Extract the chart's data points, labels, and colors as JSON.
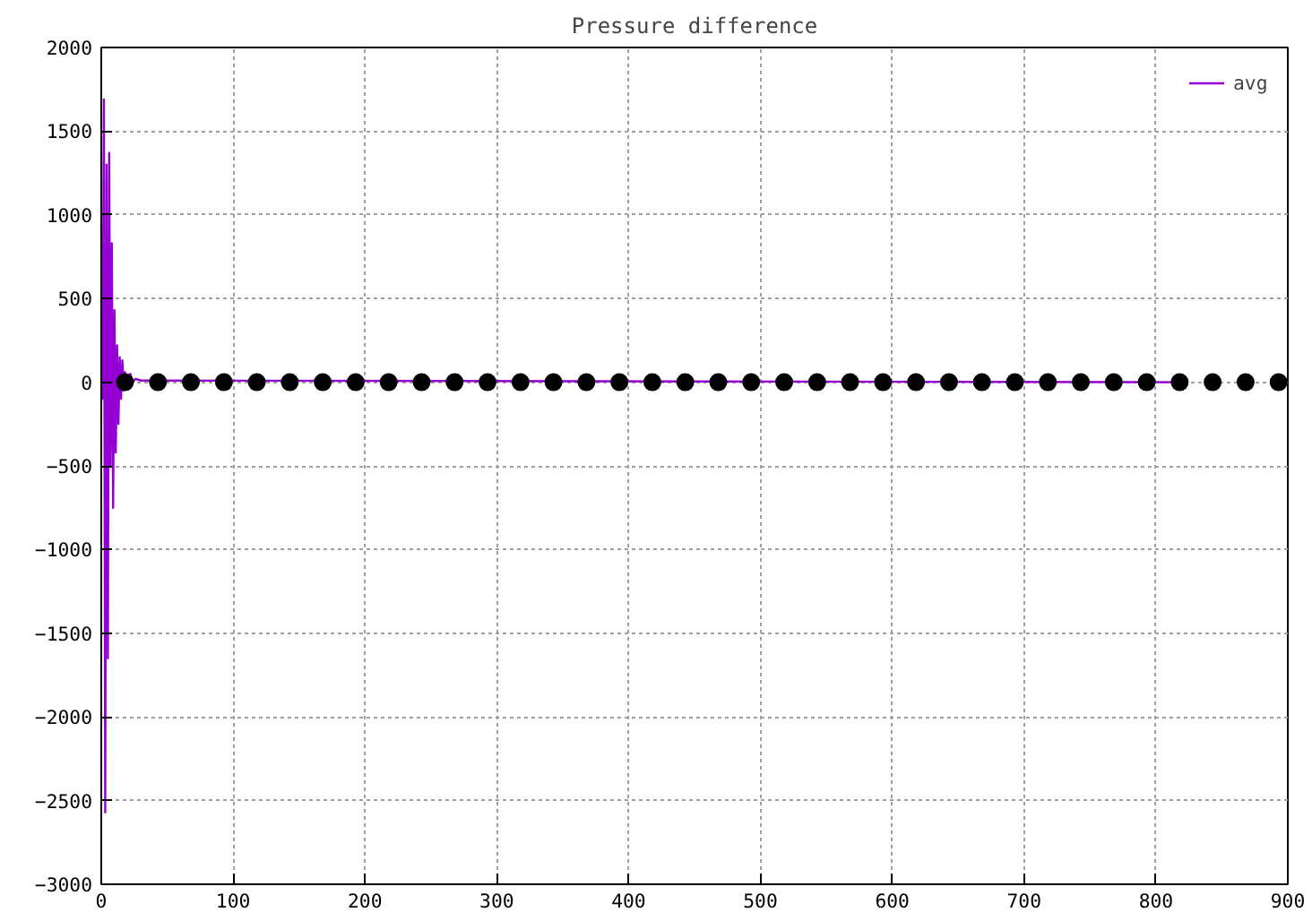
{
  "chart_data": {
    "type": "line",
    "title": "Pressure difference",
    "xlim": [
      0,
      900
    ],
    "ylim": [
      -3000,
      2000
    ],
    "xticks": [
      0,
      100,
      200,
      300,
      400,
      500,
      600,
      700,
      800,
      900
    ],
    "yticks": [
      -3000,
      -2500,
      -2000,
      -1500,
      -1000,
      -500,
      0,
      500,
      1000,
      1500,
      2000
    ],
    "grid": true,
    "legend": "top right",
    "series": [
      {
        "name": "avg",
        "color": "#9400d3",
        "marker": "none",
        "x": [
          0,
          1,
          2,
          3,
          4,
          5,
          6,
          7,
          8,
          9,
          10,
          11,
          12,
          13,
          14,
          15,
          16,
          17,
          18,
          19,
          20,
          22,
          24,
          26,
          30,
          35,
          818
        ],
        "values": [
          0,
          -100,
          1690,
          -2570,
          1300,
          -1650,
          1370,
          -500,
          830,
          -750,
          430,
          -420,
          220,
          -250,
          150,
          -100,
          130,
          -50,
          60,
          -30,
          20,
          50,
          0,
          20,
          10,
          10,
          0
        ]
      },
      {
        "color": "#000000",
        "type": "scatter",
        "marker": "circle",
        "x": [
          18,
          43,
          68,
          93,
          118,
          143,
          168,
          193,
          218,
          243,
          268,
          293,
          318,
          343,
          368,
          393,
          418,
          443,
          468,
          493,
          518,
          543,
          568,
          593,
          618,
          643,
          668,
          693,
          718,
          743,
          768,
          793,
          818,
          843,
          868,
          893
        ],
        "values": [
          0,
          0,
          0,
          0,
          0,
          0,
          0,
          0,
          0,
          0,
          0,
          0,
          0,
          0,
          0,
          0,
          0,
          0,
          0,
          0,
          0,
          0,
          0,
          0,
          0,
          0,
          0,
          0,
          0,
          0,
          0,
          0,
          0,
          0,
          0,
          0
        ]
      }
    ]
  }
}
